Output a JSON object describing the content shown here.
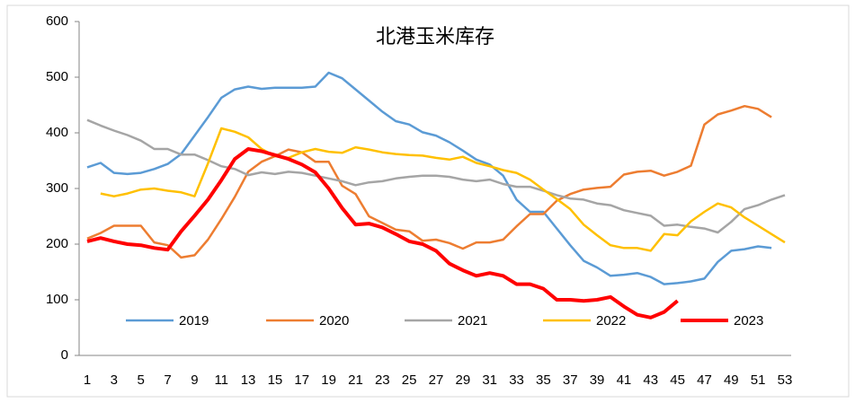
{
  "chart_data": {
    "type": "line",
    "title": "北港玉米库存",
    "categories": [
      1,
      null,
      3,
      null,
      5,
      null,
      7,
      null,
      9,
      null,
      11,
      null,
      13,
      null,
      15,
      null,
      17,
      null,
      19,
      null,
      21,
      null,
      23,
      null,
      25,
      null,
      27,
      null,
      29,
      null,
      31,
      null,
      33,
      null,
      35,
      null,
      37,
      null,
      39,
      null,
      41,
      null,
      43,
      null,
      45,
      null,
      47,
      null,
      49,
      null,
      51,
      null,
      53
    ],
    "ylim": [
      0,
      600
    ],
    "yticks": [
      0,
      100,
      200,
      300,
      400,
      500,
      600
    ],
    "grid": false,
    "legend": "bottom",
    "series": [
      {
        "name": "2019",
        "color": "#5b9bd5",
        "values": [
          338,
          346,
          328,
          326,
          328,
          335,
          344,
          362,
          395,
          428,
          463,
          478,
          483,
          479,
          481,
          481,
          481,
          483,
          508,
          498,
          478,
          458,
          438,
          421,
          415,
          401,
          395,
          383,
          368,
          352,
          343,
          323,
          280,
          258,
          258,
          228,
          198,
          170,
          158,
          143,
          145,
          148,
          141,
          128,
          130,
          133,
          138,
          168,
          188,
          191,
          196,
          193,
          null
        ]
      },
      {
        "name": "2020",
        "color": "#ed7d31",
        "values": [
          210,
          220,
          233,
          233,
          233,
          203,
          198,
          176,
          180,
          208,
          245,
          285,
          330,
          348,
          358,
          370,
          365,
          348,
          348,
          305,
          290,
          250,
          238,
          226,
          223,
          206,
          208,
          202,
          192,
          203,
          203,
          208,
          232,
          254,
          254,
          278,
          290,
          298,
          301,
          303,
          325,
          330,
          332,
          323,
          330,
          341,
          415,
          433,
          440,
          448,
          443,
          428,
          null
        ]
      },
      {
        "name": "2021",
        "color": "#a5a5a5",
        "values": [
          423,
          413,
          404,
          396,
          386,
          371,
          371,
          361,
          361,
          351,
          340,
          335,
          324,
          329,
          326,
          330,
          328,
          323,
          318,
          313,
          306,
          311,
          313,
          318,
          321,
          323,
          323,
          321,
          316,
          313,
          316,
          308,
          303,
          303,
          296,
          288,
          282,
          280,
          273,
          270,
          261,
          256,
          251,
          233,
          235,
          231,
          228,
          221,
          240,
          263,
          270,
          280,
          288
        ]
      },
      {
        "name": "2022",
        "color": "#ffc000",
        "values": [
          null,
          291,
          286,
          291,
          298,
          300,
          296,
          293,
          286,
          345,
          408,
          402,
          392,
          371,
          358,
          355,
          365,
          371,
          366,
          364,
          374,
          370,
          365,
          362,
          360,
          359,
          355,
          352,
          357,
          346,
          340,
          333,
          328,
          316,
          298,
          281,
          263,
          235,
          216,
          198,
          193,
          193,
          188,
          218,
          216,
          241,
          258,
          273,
          266,
          248,
          233,
          218,
          203
        ]
      },
      {
        "name": "2023",
        "color": "#ff0000",
        "values": [
          205,
          211,
          205,
          200,
          198,
          193,
          190,
          223,
          251,
          280,
          315,
          353,
          371,
          367,
          360,
          353,
          343,
          329,
          300,
          265,
          235,
          237,
          230,
          218,
          205,
          200,
          188,
          165,
          153,
          143,
          148,
          143,
          128,
          128,
          120,
          100,
          100,
          98,
          100,
          105,
          88,
          73,
          68,
          78,
          98,
          null,
          null,
          null,
          null,
          null,
          null,
          null,
          null
        ]
      }
    ]
  }
}
